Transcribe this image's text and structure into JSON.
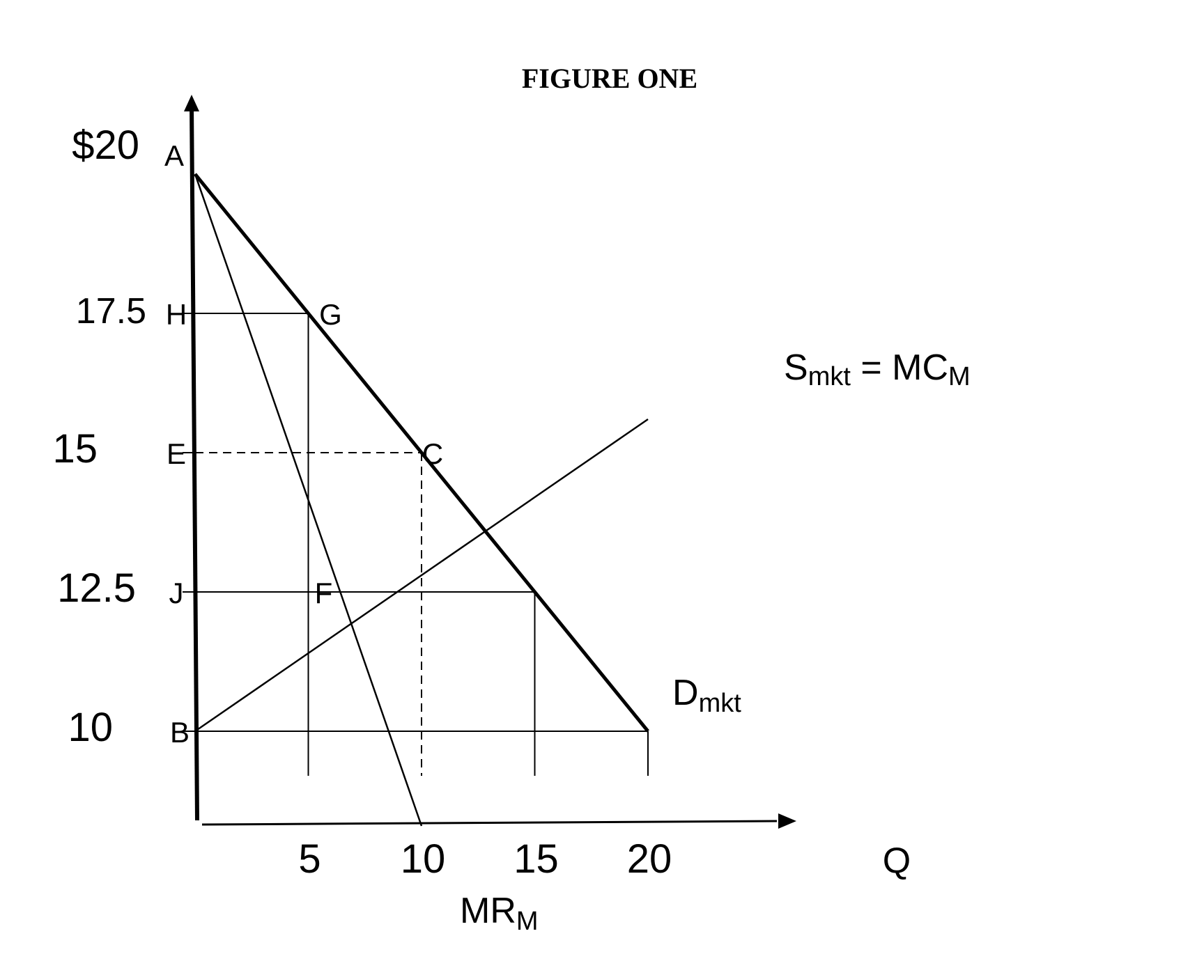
{
  "chart_data": {
    "type": "line",
    "title": "FIGURE ONE",
    "xlabel": "Q",
    "ylabel": "",
    "xlim": [
      0,
      30
    ],
    "ylim": [
      9.2,
      20.8
    ],
    "x_ticks": [
      {
        "value": 5,
        "label": "5"
      },
      {
        "value": 10,
        "label": "10"
      },
      {
        "value": 15,
        "label": "15"
      },
      {
        "value": 20,
        "label": "20"
      }
    ],
    "y_ticks": [
      {
        "value": 20,
        "label": "$20",
        "point": "A"
      },
      {
        "value": 17.5,
        "label": "17.5",
        "point": "H"
      },
      {
        "value": 15,
        "label": "15",
        "point": "E"
      },
      {
        "value": 12.5,
        "label": "12.5",
        "point": "J"
      },
      {
        "value": 10,
        "label": "10",
        "point": "B"
      }
    ],
    "series": [
      {
        "key": "demand",
        "name": "Dmkt",
        "name_main": "D",
        "name_sub": "mkt",
        "points": [
          [
            0,
            20
          ],
          [
            20,
            10
          ]
        ]
      },
      {
        "key": "supply",
        "name": "Smkt = MCM",
        "name_parts": [
          "S",
          "mkt",
          " = MC",
          "M"
        ],
        "points": [
          [
            0,
            10
          ],
          [
            20,
            15.6
          ]
        ]
      },
      {
        "key": "mr",
        "name": "MRM",
        "name_main": "MR",
        "name_sub": "M",
        "points": [
          [
            0,
            20
          ],
          [
            10,
            8.3
          ]
        ]
      }
    ],
    "points": [
      {
        "label": "A",
        "x": 0,
        "y": 20
      },
      {
        "label": "G",
        "x": 5,
        "y": 17.5
      },
      {
        "label": "C",
        "x": 10,
        "y": 15
      },
      {
        "label": "F",
        "x": 5,
        "y": 12.5
      },
      {
        "label": "B",
        "x": 0,
        "y": 10
      },
      {
        "label": "H",
        "x": 0,
        "y": 17.5
      },
      {
        "label": "E",
        "x": 0,
        "y": 15
      },
      {
        "label": "J",
        "x": 0,
        "y": 12.5
      }
    ],
    "guides": [
      {
        "style": "solid",
        "from": [
          0,
          17.5
        ],
        "to": [
          5,
          17.5
        ]
      },
      {
        "style": "solid",
        "from": [
          5,
          17.5
        ],
        "to": [
          5,
          9.2
        ]
      },
      {
        "style": "dashed",
        "from": [
          0,
          15
        ],
        "to": [
          10,
          15
        ]
      },
      {
        "style": "dashed",
        "from": [
          10,
          15
        ],
        "to": [
          10,
          9.2
        ]
      },
      {
        "style": "solid",
        "from": [
          0,
          12.5
        ],
        "to": [
          15,
          12.5
        ]
      },
      {
        "style": "solid",
        "from": [
          15,
          12.5
        ],
        "to": [
          15,
          9.2
        ]
      },
      {
        "style": "solid",
        "from": [
          0,
          10
        ],
        "to": [
          20,
          10
        ]
      },
      {
        "style": "solid",
        "from": [
          20,
          10
        ],
        "to": [
          20,
          9.2
        ]
      }
    ],
    "grid": false
  }
}
